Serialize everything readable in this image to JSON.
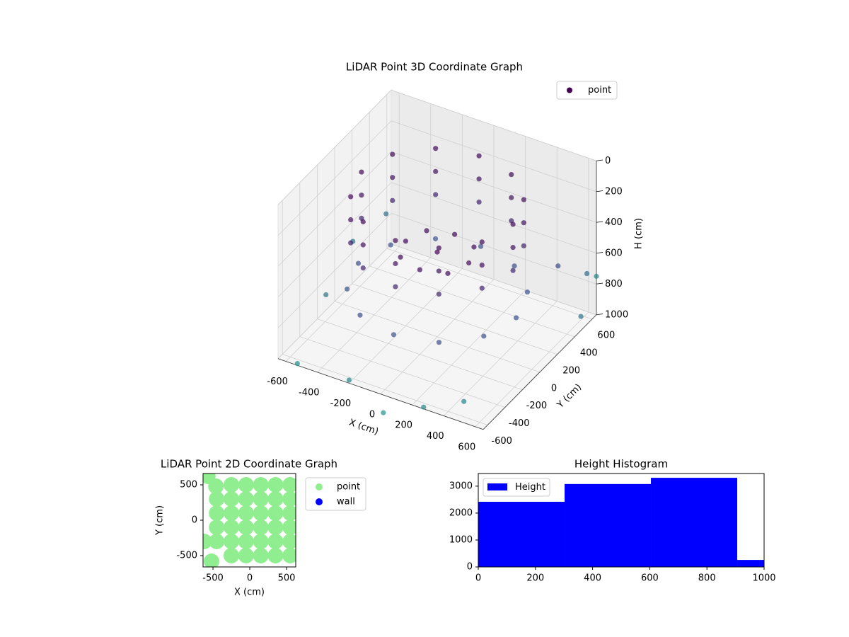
{
  "chart_data": [
    {
      "type": "scatter3d",
      "title": "LiDAR Point 3D Coordinate Graph",
      "xlabel": "X (cm)",
      "ylabel": "Y (cm)",
      "zlabel": "H (cm)",
      "xlim": [
        -650,
        650
      ],
      "ylim": [
        -650,
        650
      ],
      "zlim": [
        1000,
        0
      ],
      "xticks": [
        -600,
        -400,
        -200,
        0,
        200,
        400,
        600
      ],
      "yticks": [
        -600,
        -400,
        -200,
        0,
        200,
        400,
        600
      ],
      "zticks": [
        0,
        200,
        400,
        600,
        800,
        1000
      ],
      "colormap": [
        "#440154",
        "#3b528b",
        "#21918c"
      ],
      "legend": "upper right",
      "series": [
        {
          "name": "point",
          "x": [
            480,
            416,
            240,
            0,
            -240,
            -416,
            -480,
            -416,
            -240,
            0,
            240,
            416,
            480,
            416,
            240,
            0,
            -240,
            -416,
            -480,
            -416,
            -240,
            0,
            240,
            416,
            480,
            416,
            240,
            0,
            -240,
            -416,
            -480,
            -416,
            -240,
            0,
            240,
            416,
            500,
            433,
            250,
            0,
            -250,
            -433,
            -500,
            -433,
            -250,
            0,
            250,
            433,
            0,
            200,
            -200,
            0,
            0,
            150,
            -150,
            150,
            -150,
            -700,
            -650,
            -600,
            700,
            650,
            600,
            300,
            -200,
            500,
            800,
            -500,
            100
          ],
          "y": [
            0,
            240,
            416,
            480,
            416,
            240,
            0,
            -240,
            -416,
            -480,
            -416,
            -240,
            0,
            240,
            416,
            480,
            416,
            240,
            0,
            -240,
            -416,
            -480,
            -416,
            -240,
            0,
            240,
            416,
            480,
            416,
            240,
            0,
            -240,
            -416,
            -480,
            -416,
            -240,
            0,
            250,
            433,
            500,
            433,
            250,
            0,
            -250,
            -433,
            -500,
            -433,
            -250,
            0,
            0,
            0,
            200,
            -200,
            150,
            -150,
            -150,
            150,
            300,
            -100,
            500,
            450,
            650,
            300,
            -700,
            -650,
            -600,
            200,
            -700,
            -800
          ],
          "z": [
            100,
            100,
            100,
            100,
            100,
            100,
            100,
            100,
            100,
            100,
            100,
            100,
            250,
            250,
            250,
            250,
            250,
            250,
            250,
            250,
            250,
            250,
            250,
            250,
            400,
            400,
            400,
            400,
            400,
            400,
            400,
            400,
            400,
            400,
            400,
            400,
            700,
            700,
            700,
            700,
            700,
            700,
            700,
            700,
            700,
            700,
            700,
            700,
            450,
            450,
            450,
            450,
            450,
            450,
            450,
            450,
            450,
            800,
            900,
            700,
            600,
            750,
            500,
            950,
            980,
            900,
            700,
            950,
            1000
          ]
        }
      ]
    },
    {
      "type": "scatter",
      "title": "LiDAR Point 2D Coordinate Graph",
      "xlabel": "X (cm)",
      "ylabel": "Y (cm)",
      "xlim": [
        -635,
        625
      ],
      "ylim": [
        -660,
        660
      ],
      "xticks": [
        -500,
        0,
        500
      ],
      "yticks": [
        -500,
        0,
        500
      ],
      "legend": "outside upper right",
      "series": [
        {
          "name": "point",
          "color": "#90ee90",
          "x": [
            -250,
            -50,
            150,
            350,
            550,
            -450,
            -250,
            -50,
            150,
            350,
            550,
            -450,
            -250,
            -50,
            150,
            350,
            550,
            -450,
            -250,
            -50,
            150,
            350,
            550,
            -450,
            -250,
            -50,
            150,
            350,
            550,
            -250,
            -50,
            150,
            350,
            550,
            -570,
            -460,
            -620,
            -520
          ],
          "y": [
            -500,
            -500,
            -500,
            -500,
            -500,
            -300,
            -300,
            -300,
            -300,
            -300,
            -300,
            -100,
            -100,
            -100,
            -100,
            -100,
            -100,
            100,
            100,
            100,
            100,
            100,
            100,
            300,
            300,
            300,
            300,
            300,
            300,
            500,
            500,
            500,
            500,
            500,
            620,
            480,
            -300,
            -580
          ]
        },
        {
          "name": "wall",
          "color": "#0000ff",
          "x": [],
          "y": []
        }
      ]
    },
    {
      "type": "histogram",
      "title": "Height Histogram",
      "bins": [
        0,
        302,
        604,
        906,
        1208
      ],
      "xlim": [
        0,
        1000
      ],
      "ylim": [
        0,
        3470
      ],
      "xticks": [
        0,
        200,
        400,
        600,
        800,
        1000
      ],
      "yticks": [
        0,
        1000,
        2000,
        3000
      ],
      "legend": "upper left",
      "series": [
        {
          "name": "Height",
          "color": "#0000ff",
          "values": [
            2420,
            3080,
            3310,
            260
          ]
        }
      ]
    }
  ]
}
